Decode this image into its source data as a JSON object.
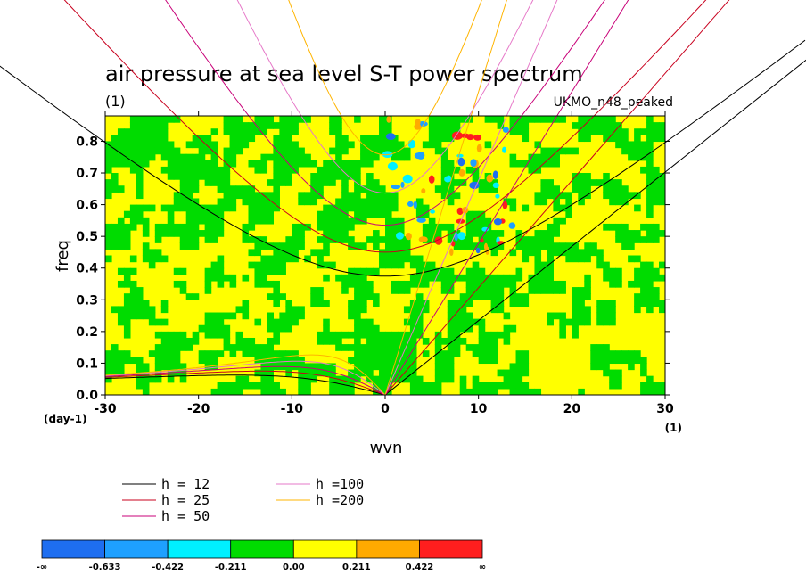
{
  "chart_data": {
    "type": "heatmap",
    "title": "air pressure at sea level S-T power spectrum",
    "subtitle": "(1)",
    "model_label": "UKMO_n48_peaked",
    "xlabel": "wvn",
    "ylabel": "freq",
    "x_unit": "(1)",
    "y_unit": "(day-1)",
    "xlim": [
      -30,
      30
    ],
    "ylim": [
      0,
      0.88
    ],
    "x_ticks": [
      "-30",
      "-20",
      "-10",
      "0",
      "10",
      "20",
      "30"
    ],
    "y_ticks": [
      "0.0",
      "0.1",
      "0.2",
      "0.3",
      "0.4",
      "0.5",
      "0.6",
      "0.7",
      "0.8"
    ],
    "colorbar": {
      "labels": [
        "-∞",
        "-0.633",
        "-0.422",
        "-0.211",
        "0.00",
        "0.211",
        "0.422",
        "∞"
      ],
      "colors": [
        "#1e6ef0",
        "#1ea0ff",
        "#00f0ff",
        "#00dc00",
        "#ffff00",
        "#ffaa00",
        "#ff1e1e"
      ]
    },
    "dispersion_curves": [
      {
        "name": "h = 12",
        "h": 12,
        "color": "#000000"
      },
      {
        "name": "h = 25",
        "h": 25,
        "color": "#c8001e"
      },
      {
        "name": "h = 50",
        "h": 50,
        "color": "#c80078"
      },
      {
        "name": "h =100",
        "h": 100,
        "color": "#e678c8"
      },
      {
        "name": "h =200",
        "h": 200,
        "color": "#ffb400"
      }
    ],
    "field_pattern": {
      "background": "#ffff00",
      "main_color": "#00dc00",
      "anomaly_colors": [
        "#00f0ff",
        "#1ea0ff",
        "#1e6ef0",
        "#ffaa00",
        "#ff1e1e"
      ]
    }
  }
}
